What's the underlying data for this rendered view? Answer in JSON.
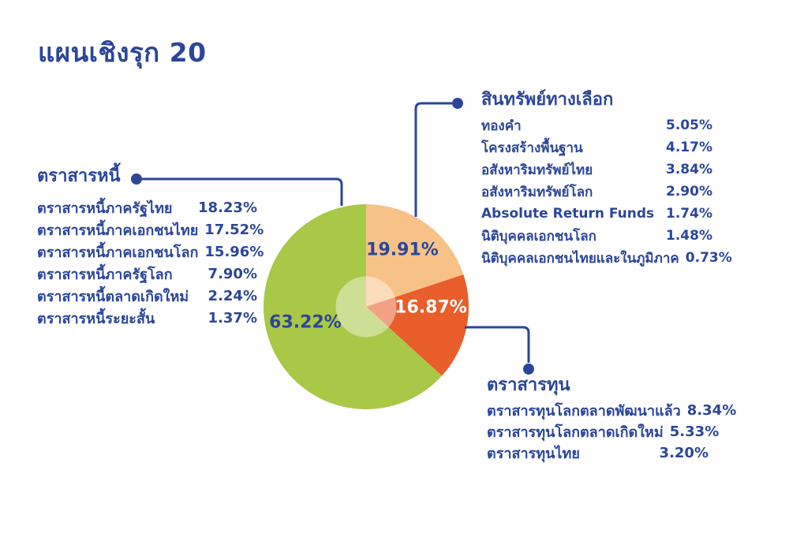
{
  "page_title": "แผนเชิงรุก 20",
  "colors": {
    "text_blue": "#2b4699",
    "connector_blue": "#2b4699",
    "slice_green": "#a9c848",
    "slice_peach": "#f7c288",
    "slice_orange": "#e95e2b"
  },
  "chart_data": {
    "type": "pie",
    "title": "แผนเชิงรุก 20",
    "direction": "clockwise",
    "start_angle_deg_from_top": 0,
    "slices": [
      {
        "group": "สินทรัพย์ทางเลือก",
        "value": 19.91,
        "display": "19.91%",
        "color": "#f7c288"
      },
      {
        "group": "ตราสารทุน",
        "value": 16.87,
        "display": "16.87%",
        "color": "#e95e2b"
      },
      {
        "group": "ตราสารหนี้",
        "value": 63.22,
        "display": "63.22%",
        "color": "#a9c848"
      }
    ],
    "center_overlay": "translucent white circle (donut highlight)",
    "legend_position": "three labeled groups connected by callout lines"
  },
  "groups": {
    "fixed_income": {
      "header": "ตราสารหนี้",
      "items": [
        {
          "label": "ตราสารหนี้ภาครัฐไทย",
          "value": "18.23%"
        },
        {
          "label": "ตราสารหนี้ภาคเอกชนไทย",
          "value": "17.52%"
        },
        {
          "label": "ตราสารหนี้ภาคเอกชนโลก",
          "value": "15.96%"
        },
        {
          "label": "ตราสารหนี้ภาครัฐโลก",
          "value": "7.90%"
        },
        {
          "label": "ตราสารหนี้ตลาดเกิดใหม่",
          "value": "2.24%"
        },
        {
          "label": "ตราสารหนี้ระยะสั้น",
          "value": "1.37%"
        }
      ]
    },
    "alternative_assets": {
      "header": "สินทรัพย์ทางเลือก",
      "items": [
        {
          "label": "ทองคำ",
          "value": "5.05%"
        },
        {
          "label": "โครงสร้างพื้นฐาน",
          "value": "4.17%"
        },
        {
          "label": "อสังหาริมทรัพย์ไทย",
          "value": "3.84%"
        },
        {
          "label": "อสังหาริมทรัพย์โลก",
          "value": "2.90%"
        },
        {
          "label": "Absolute Return Funds",
          "value": "1.74%"
        },
        {
          "label": "นิติบุคคลเอกชนโลก",
          "value": "1.48%"
        },
        {
          "label": "นิติบุคคลเอกชนไทยและในภูมิภาค",
          "value": "0.73%"
        }
      ]
    },
    "equity": {
      "header": "ตราสารทุน",
      "items": [
        {
          "label": "ตราสารทุนโลกตลาดพัฒนาแล้ว",
          "value": "8.34%"
        },
        {
          "label": "ตราสารทุนโลกตลาดเกิดใหม่",
          "value": "5.33%"
        },
        {
          "label": "ตราสารทุนไทย",
          "value": "3.20%"
        }
      ]
    }
  }
}
